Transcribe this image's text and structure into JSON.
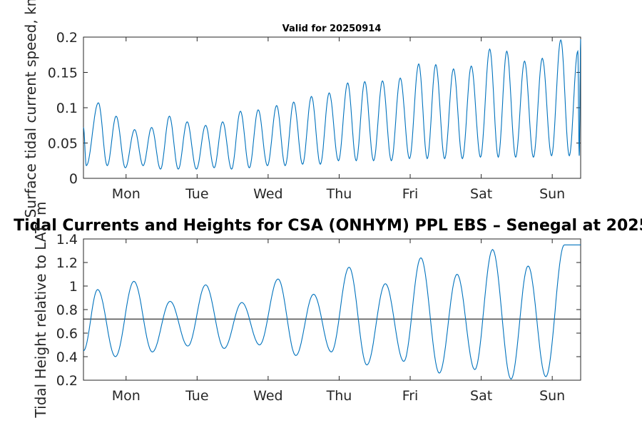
{
  "figure": {
    "suptitle": "Tidal Currents and Heights for CSA (ONHYM) PPL EBS  – Senegal at 2025"
  },
  "chart_data": [
    {
      "type": "line",
      "title": "Valid for 20250914",
      "xlabel": "",
      "ylabel": "Surface tidal current speed, kn",
      "xlim": [
        0,
        7
      ],
      "ylim": [
        0,
        0.2
      ],
      "yticks": [
        0,
        0.05,
        0.1,
        0.15,
        0.2
      ],
      "ytick_labels": [
        "0",
        "0.05",
        "0.1",
        "0.15",
        "0.2"
      ],
      "xticks": [
        0.6,
        1.6,
        2.6,
        3.6,
        4.6,
        5.6,
        6.6
      ],
      "xtick_labels": [
        "Mon",
        "Tue",
        "Wed",
        "Thu",
        "Fri",
        "Sat",
        "Sun"
      ],
      "grid": false,
      "series": [
        {
          "color": "#0072BD",
          "x": [
            0.0,
            0.04,
            0.21,
            0.46,
            0.72,
            0.96,
            1.21,
            1.46,
            1.72,
            1.96,
            2.21,
            2.46,
            2.72,
            2.96,
            3.21,
            3.46,
            3.72,
            3.96,
            4.21,
            4.46,
            4.72,
            4.96,
            5.21,
            5.46,
            5.72,
            5.96,
            6.21,
            6.46,
            6.72,
            6.96,
            7.0
          ],
          "y": [
            0.072,
            0.018,
            0.107,
            0.088,
            0.069,
            0.072,
            0.088,
            0.08,
            0.075,
            0.08,
            0.095,
            0.097,
            0.103,
            0.108,
            0.116,
            0.121,
            0.135,
            0.137,
            0.138,
            0.142,
            0.162,
            0.161,
            0.155,
            0.159,
            0.183,
            0.18,
            0.166,
            0.17,
            0.196,
            0.18,
            0.197
          ],
          "troughs": [
            0.018,
            0.018,
            0.015,
            0.018,
            0.013,
            0.013,
            0.013,
            0.015,
            0.013,
            0.015,
            0.018,
            0.018,
            0.02,
            0.02,
            0.025,
            0.025,
            0.025,
            0.025,
            0.028,
            0.028,
            0.028,
            0.028,
            0.03,
            0.03,
            0.03,
            0.03,
            0.032
          ]
        }
      ]
    },
    {
      "type": "line",
      "title": "",
      "xlabel": "",
      "ylabel": "Tidal Height relative to LAT, m",
      "xlim": [
        0,
        7
      ],
      "ylim": [
        0.2,
        1.4
      ],
      "yticks": [
        0.2,
        0.4,
        0.6,
        0.8,
        1.0,
        1.2,
        1.4
      ],
      "ytick_labels": [
        "0.2",
        "0.4",
        "0.6",
        "0.8",
        "1",
        "1.2",
        "1.4"
      ],
      "xticks": [
        0.6,
        1.6,
        2.6,
        3.6,
        4.6,
        5.6,
        6.6
      ],
      "xtick_labels": [
        "Mon",
        "Tue",
        "Wed",
        "Thu",
        "Fri",
        "Sat",
        "Sun"
      ],
      "grid": false,
      "reference_line": {
        "y": 0.72,
        "color": "#000000"
      },
      "series": [
        {
          "color": "#0072BD",
          "extrema_x": [
            0.0,
            0.2,
            0.45,
            0.71,
            0.97,
            1.22,
            1.47,
            1.72,
            1.98,
            2.23,
            2.48,
            2.74,
            2.99,
            3.24,
            3.49,
            3.74,
            3.99,
            4.25,
            4.51,
            4.75,
            5.01,
            5.26,
            5.51,
            5.76,
            6.02,
            6.26,
            6.51,
            6.77,
            7.0
          ],
          "extrema_y": [
            0.45,
            0.97,
            0.4,
            1.04,
            0.44,
            0.87,
            0.49,
            1.01,
            0.47,
            0.86,
            0.5,
            1.06,
            0.41,
            0.93,
            0.44,
            1.16,
            0.33,
            1.02,
            0.36,
            1.24,
            0.26,
            1.1,
            0.29,
            1.31,
            0.21,
            1.17,
            0.23,
            1.35,
            1.35
          ]
        }
      ]
    }
  ]
}
